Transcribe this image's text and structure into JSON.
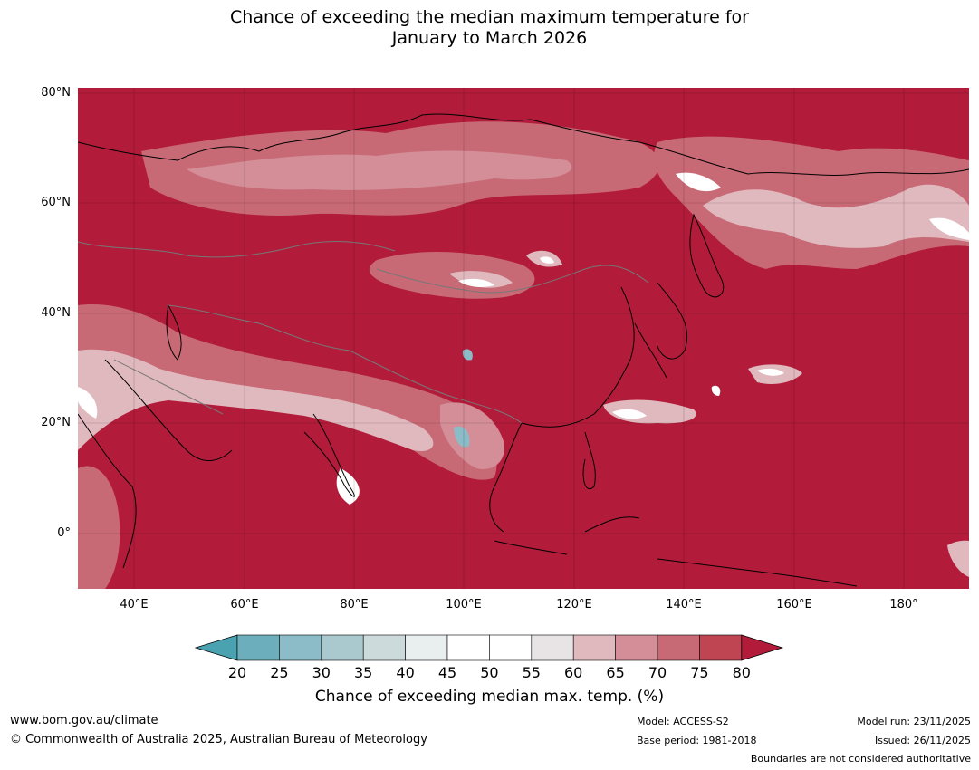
{
  "title": {
    "line1": "Chance of exceeding the median maximum temperature for",
    "line2": "January to March 2026"
  },
  "axes": {
    "lat_labels": [
      "80°N",
      "60°N",
      "40°N",
      "20°N",
      "0°"
    ],
    "lon_labels": [
      "40°E",
      "60°E",
      "80°E",
      "100°E",
      "120°E",
      "140°E",
      "160°E",
      "180°"
    ]
  },
  "colorbar": {
    "ticks": [
      "20",
      "25",
      "30",
      "35",
      "40",
      "45",
      "50",
      "55",
      "60",
      "65",
      "70",
      "75",
      "80"
    ],
    "colors": [
      "#4aa1b0",
      "#6caebb",
      "#8bbcc7",
      "#aac9cf",
      "#cddadc",
      "#e9eeef",
      "#ffffff",
      "#ffffff",
      "#e8e3e4",
      "#e0b9bf",
      "#d48e98",
      "#c86a76",
      "#bf4553",
      "#b21c3a"
    ],
    "label": "Chance of exceeding median max. temp. (%)"
  },
  "map_colors": {
    "base": "#b21c3a",
    "band75": "#bf4553",
    "band70": "#c86a76",
    "band65": "#d48e98",
    "band60": "#e0b9bf",
    "band50": "#ffffff",
    "band40": "#8bbcc7"
  },
  "footer": {
    "website": "www.bom.gov.au/climate",
    "copyright": "© Commonwealth of Australia 2025, Australian Bureau of Meteorology",
    "model": "Model: ACCESS-S2",
    "base_period": "Base period: 1981-2018",
    "model_run": "Model run: 23/11/2025",
    "issued": "Issued: 26/11/2025",
    "disclaimer": "Boundaries are not considered authoritative"
  }
}
